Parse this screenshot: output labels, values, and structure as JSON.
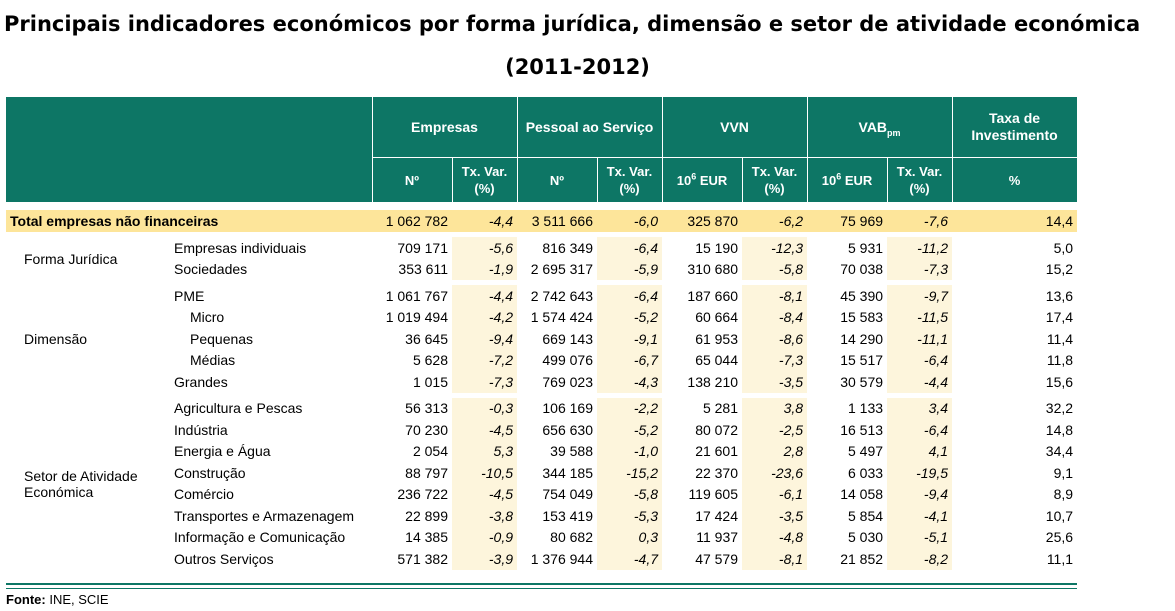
{
  "title_line1": "Principais indicadores económicos por forma jurídica, dimensão e setor de atividade económica",
  "title_line2": "(2011-2012)",
  "headers": {
    "empresas": "Empresas",
    "pessoal": "Pessoal ao Serviço",
    "vvn": "VVN",
    "vab": "VAB",
    "vab_sub": "pm",
    "taxa": "Taxa de Investimento",
    "n": "Nº",
    "txvar": "Tx. Var. (%)",
    "eur_base": "10",
    "eur_exp": "6",
    "eur_unit": " EUR",
    "pct": "%"
  },
  "total": {
    "label": "Total empresas não financeiras",
    "values": [
      "1 062 782",
      "-4,4",
      "3 511 666",
      "-6,0",
      "325 870",
      "-6,2",
      "75 969",
      "-7,6",
      "14,4"
    ]
  },
  "groups": {
    "forma": "Forma Jurídica",
    "dimensao": "Dimensão",
    "setor": "Setor de Atividade Económica"
  },
  "rows": [
    {
      "label": "Empresas individuais",
      "values": [
        "709 171",
        "-5,6",
        "816 349",
        "-6,4",
        "15 190",
        "-12,3",
        "5 931",
        "-11,2",
        "5,0"
      ]
    },
    {
      "label": "Sociedades",
      "values": [
        "353 611",
        "-1,9",
        "2 695 317",
        "-5,9",
        "310 680",
        "-5,8",
        "70 038",
        "-7,3",
        "15,2"
      ]
    },
    {
      "label": "PME",
      "values": [
        "1 061 767",
        "-4,4",
        "2 742 643",
        "-6,4",
        "187 660",
        "-8,1",
        "45 390",
        "-9,7",
        "13,6"
      ]
    },
    {
      "label": "Micro",
      "values": [
        "1 019 494",
        "-4,2",
        "1 574 424",
        "-5,2",
        "60 664",
        "-8,4",
        "15 583",
        "-11,5",
        "17,4"
      ]
    },
    {
      "label": "Pequenas",
      "values": [
        "36 645",
        "-9,4",
        "669 143",
        "-9,1",
        "61 953",
        "-8,6",
        "14 290",
        "-11,1",
        "11,4"
      ]
    },
    {
      "label": "Médias",
      "values": [
        "5 628",
        "-7,2",
        "499 076",
        "-6,7",
        "65 044",
        "-7,3",
        "15 517",
        "-6,4",
        "11,8"
      ]
    },
    {
      "label": "Grandes",
      "values": [
        "1 015",
        "-7,3",
        "769 023",
        "-4,3",
        "138 210",
        "-3,5",
        "30 579",
        "-4,4",
        "15,6"
      ]
    },
    {
      "label": "Agricultura e Pescas",
      "values": [
        "56 313",
        "-0,3",
        "106 169",
        "-2,2",
        "5 281",
        "3,8",
        "1 133",
        "3,4",
        "32,2"
      ]
    },
    {
      "label": "Indústria",
      "values": [
        "70 230",
        "-4,5",
        "656 630",
        "-5,2",
        "80 072",
        "-2,5",
        "16 513",
        "-6,4",
        "14,8"
      ]
    },
    {
      "label": "Energia e Água",
      "values": [
        "2 054",
        "5,3",
        "39 588",
        "-1,0",
        "21 601",
        "2,8",
        "5 497",
        "4,1",
        "34,4"
      ]
    },
    {
      "label": "Construção",
      "values": [
        "88 797",
        "-10,5",
        "344 185",
        "-15,2",
        "22 370",
        "-23,6",
        "6 033",
        "-19,5",
        "9,1"
      ]
    },
    {
      "label": "Comércio",
      "values": [
        "236 722",
        "-4,5",
        "754 049",
        "-5,8",
        "119 605",
        "-6,1",
        "14 058",
        "-9,4",
        "8,9"
      ]
    },
    {
      "label": "Transportes e Armazenagem",
      "values": [
        "22 899",
        "-3,8",
        "153 419",
        "-5,3",
        "17 424",
        "-3,5",
        "5 854",
        "-4,1",
        "10,7"
      ]
    },
    {
      "label": "Informação e Comunicação",
      "values": [
        "14 385",
        "-0,9",
        "80 682",
        "0,3",
        "11 937",
        "-4,8",
        "5 030",
        "-5,1",
        "25,6"
      ]
    },
    {
      "label": "Outros Serviços",
      "values": [
        "571 382",
        "-3,9",
        "1 376 944",
        "-4,7",
        "47 579",
        "-8,1",
        "21 852",
        "-8,2",
        "11,1"
      ]
    }
  ],
  "source_label": "Fonte:",
  "source_text": " INE, SCIE",
  "colors": {
    "header": "#0d7665",
    "total": "#fde59a",
    "var": "#fdf5dc"
  }
}
